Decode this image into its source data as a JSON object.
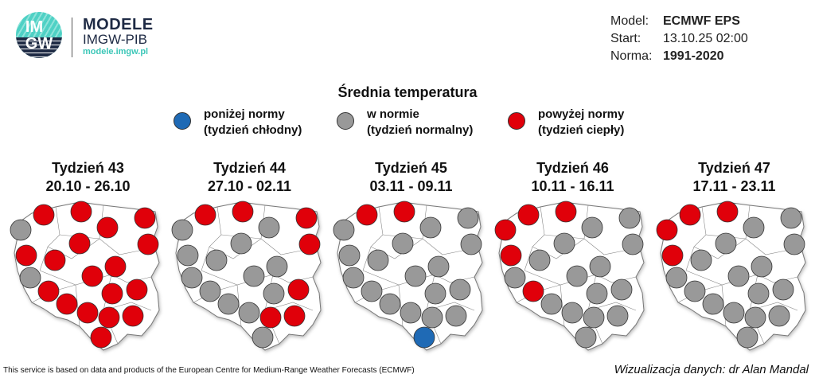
{
  "logo": {
    "circle_text_top": "IM",
    "circle_text_bottom": "GW",
    "title": "MODELE",
    "subtitle": "IMGW-PIB",
    "url": "modele.imgw.pl"
  },
  "info": [
    {
      "label": "Model:",
      "value": "ECMWF EPS",
      "bold": true
    },
    {
      "label": "Start:",
      "value": "13.10.25 02:00",
      "bold": false
    },
    {
      "label": "Norma:",
      "value": "1991-2020",
      "bold": true
    }
  ],
  "title": "Średnia temperatura",
  "colors": {
    "below": "#1f6ab5",
    "normal": "#999999",
    "above": "#e0000a"
  },
  "legend": [
    {
      "key": "below",
      "line1": "poniżej normy",
      "line2": "(tydzień chłodny)"
    },
    {
      "key": "normal",
      "line1": "w normie",
      "line2": "(tydzień normalny)"
    },
    {
      "key": "above",
      "line1": "powyżej normy",
      "line2": "(tydzień ciepły)"
    }
  ],
  "weeks": [
    {
      "name": "Tydzień 43",
      "dates": "20.10 - 26.10",
      "stations": [
        "above",
        "above",
        "above",
        "above",
        "normal",
        "above",
        "above",
        "above",
        "above",
        "above",
        "normal",
        "above",
        "above",
        "above",
        "above",
        "above",
        "above",
        "above",
        "above",
        "above"
      ]
    },
    {
      "name": "Tydzień 44",
      "dates": "27.10 - 02.11",
      "stations": [
        "above",
        "above",
        "normal",
        "above",
        "normal",
        "above",
        "normal",
        "normal",
        "normal",
        "normal",
        "normal",
        "normal",
        "above",
        "normal",
        "normal",
        "normal",
        "normal",
        "above",
        "above",
        "normal"
      ]
    },
    {
      "name": "Tydzień 45",
      "dates": "03.11 - 09.11",
      "stations": [
        "above",
        "above",
        "normal",
        "normal",
        "normal",
        "normal",
        "normal",
        "normal",
        "normal",
        "normal",
        "normal",
        "normal",
        "normal",
        "normal",
        "normal",
        "normal",
        "normal",
        "normal",
        "normal",
        "below"
      ]
    },
    {
      "name": "Tydzień 46",
      "dates": "10.11 - 16.11",
      "stations": [
        "above",
        "above",
        "normal",
        "normal",
        "above",
        "normal",
        "normal",
        "above",
        "normal",
        "normal",
        "normal",
        "normal",
        "normal",
        "above",
        "normal",
        "normal",
        "normal",
        "normal",
        "normal",
        "normal"
      ]
    },
    {
      "name": "Tydzień 47",
      "dates": "17.11 - 23.11",
      "stations": [
        "above",
        "above",
        "normal",
        "normal",
        "above",
        "normal",
        "normal",
        "above",
        "normal",
        "normal",
        "normal",
        "normal",
        "normal",
        "normal",
        "normal",
        "normal",
        "normal",
        "normal",
        "normal",
        "normal"
      ]
    }
  ],
  "footer": {
    "left": "This service is based on data and products of the European Centre for Medium-Range Weather Forecasts (ECMWF)",
    "right": "Wizualizacja danych: dr Alan Mandal"
  }
}
